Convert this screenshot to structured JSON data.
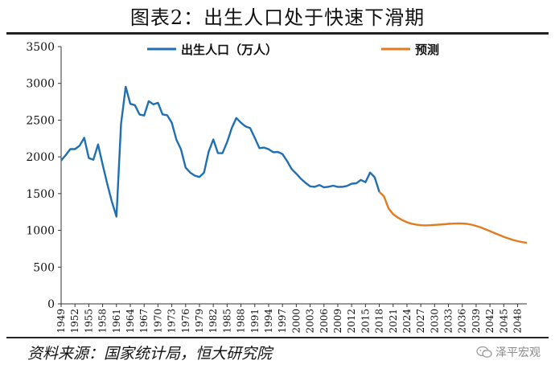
{
  "page": {
    "title": "图表2：出生人口处于快速下滑期",
    "source": "资料来源：国家统计局，恒大研究院",
    "watermark": "泽平宏观"
  },
  "chart_data": {
    "type": "line",
    "title": "图表2：出生人口处于快速下滑期",
    "xlabel": "",
    "ylabel": "",
    "ylim": [
      0,
      3500
    ],
    "yticks": [
      0,
      500,
      1000,
      1500,
      2000,
      2500,
      3000,
      3500
    ],
    "xlim": [
      1949,
      2050
    ],
    "xticks": [
      1949,
      1952,
      1955,
      1958,
      1961,
      1964,
      1967,
      1970,
      1973,
      1976,
      1979,
      1982,
      1985,
      1988,
      1991,
      1994,
      1997,
      2000,
      2003,
      2006,
      2009,
      2012,
      2015,
      2018,
      2021,
      2024,
      2027,
      2030,
      2033,
      2036,
      2039,
      2042,
      2045,
      2048
    ],
    "grid": false,
    "legend_position": "top",
    "series": [
      {
        "name": "出生人口（万人）",
        "color": "#1f6fb2",
        "x": [
          1949,
          1950,
          1951,
          1952,
          1953,
          1954,
          1955,
          1956,
          1957,
          1958,
          1959,
          1960,
          1961,
          1962,
          1963,
          1964,
          1965,
          1966,
          1967,
          1968,
          1969,
          1970,
          1971,
          1972,
          1973,
          1974,
          1975,
          1976,
          1977,
          1978,
          1979,
          1980,
          1981,
          1982,
          1983,
          1984,
          1985,
          1986,
          1987,
          1988,
          1989,
          1990,
          1991,
          1992,
          1993,
          1994,
          1995,
          1996,
          1997,
          1998,
          1999,
          2000,
          2001,
          2002,
          2003,
          2004,
          2005,
          2006,
          2007,
          2008,
          2009,
          2010,
          2011,
          2012,
          2013,
          2014,
          2015,
          2016,
          2017,
          2018
        ],
        "y": [
          1950,
          2023,
          2107,
          2105,
          2151,
          2260,
          1984,
          1961,
          2169,
          1896,
          1635,
          1389,
          1188,
          2451,
          2954,
          2721,
          2704,
          2577,
          2563,
          2757,
          2715,
          2736,
          2578,
          2566,
          2463,
          2235,
          2102,
          1853,
          1786,
          1745,
          1726,
          1787,
          2069,
          2237,
          2052,
          2050,
          2202,
          2391,
          2529,
          2464,
          2414,
          2391,
          2258,
          2119,
          2126,
          2104,
          2063,
          2067,
          2038,
          1942,
          1834,
          1771,
          1702,
          1647,
          1599,
          1593,
          1617,
          1585,
          1594,
          1608,
          1591,
          1592,
          1604,
          1635,
          1640,
          1687,
          1655,
          1786,
          1723,
          1523
        ]
      },
      {
        "name": "预测",
        "color": "#e07b22",
        "x": [
          2018,
          2019,
          2020,
          2021,
          2022,
          2023,
          2024,
          2025,
          2026,
          2027,
          2028,
          2029,
          2030,
          2031,
          2032,
          2033,
          2034,
          2035,
          2036,
          2037,
          2038,
          2039,
          2040,
          2041,
          2042,
          2043,
          2044,
          2045,
          2046,
          2047,
          2048,
          2049,
          2050
        ],
        "y": [
          1523,
          1465,
          1300,
          1220,
          1175,
          1140,
          1110,
          1090,
          1078,
          1070,
          1068,
          1070,
          1074,
          1078,
          1083,
          1088,
          1092,
          1094,
          1093,
          1088,
          1077,
          1060,
          1040,
          1015,
          990,
          963,
          937,
          912,
          890,
          870,
          853,
          840,
          830
        ]
      }
    ]
  }
}
